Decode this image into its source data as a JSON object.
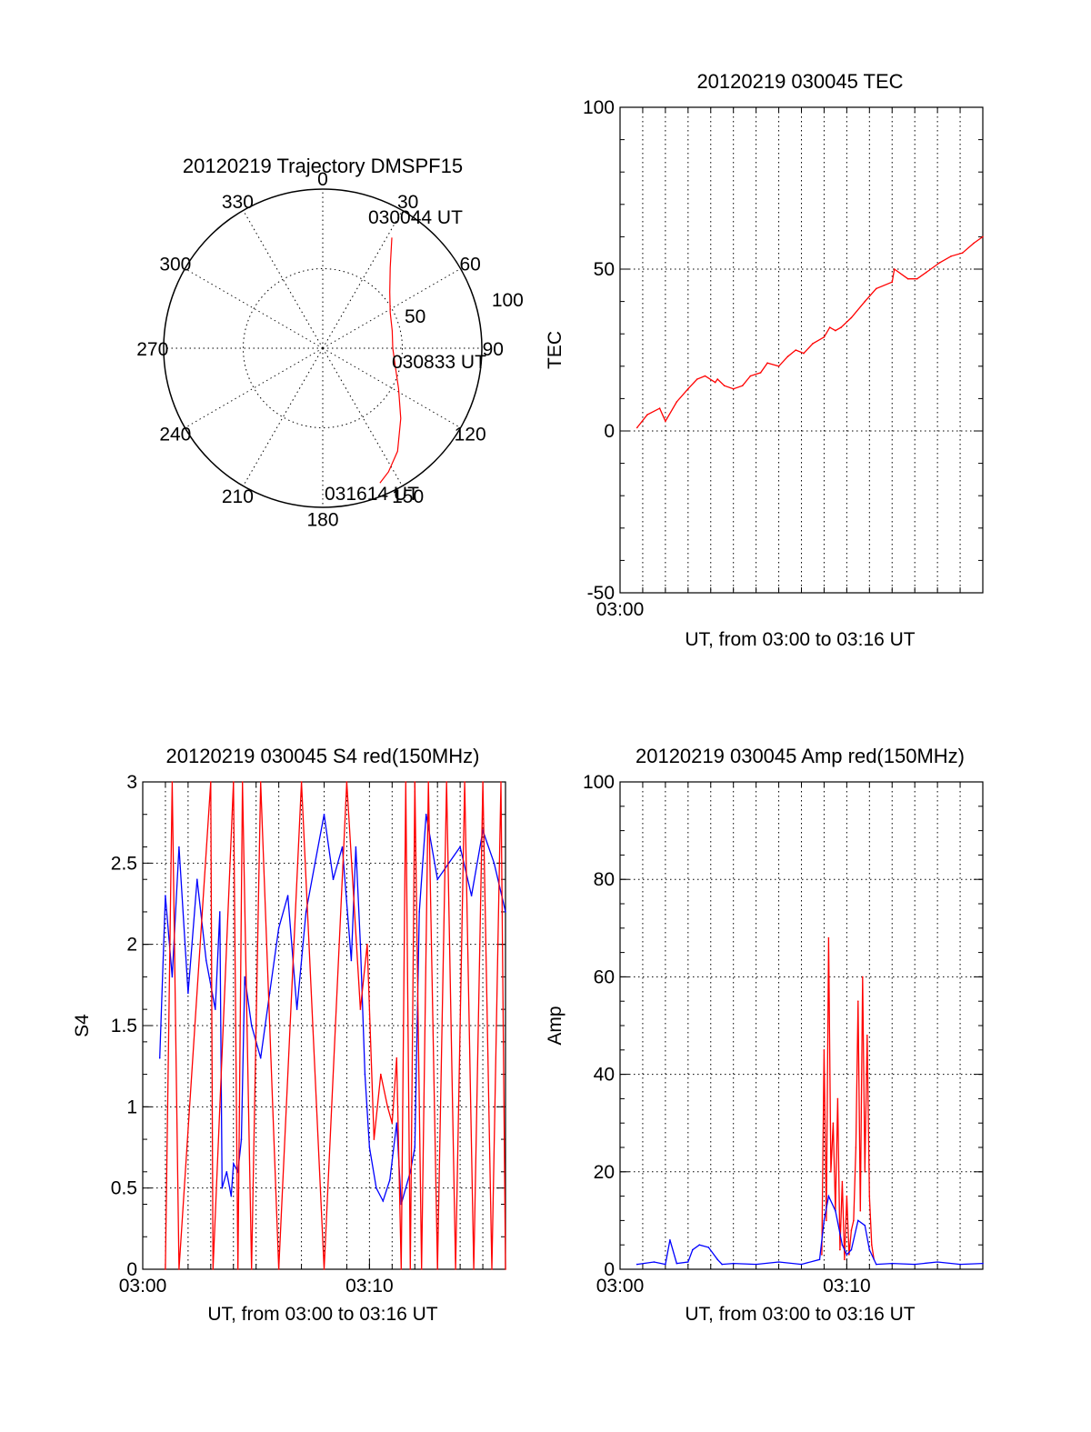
{
  "colors": {
    "red": "#ff0000",
    "blue": "#0000ff",
    "axis": "#000000"
  },
  "chart_data": [
    {
      "type": "polar",
      "title": "20120219 Trajectory DMSPF15",
      "azimuth_labels": [
        "0",
        "30",
        "60",
        "90",
        "120",
        "150",
        "180",
        "210",
        "240",
        "270",
        "300",
        "330"
      ],
      "radius_labels": [
        "50",
        "100"
      ],
      "rlim": [
        0,
        100
      ],
      "annotations": [
        "030044 UT",
        "030833 UT",
        "031614 UT"
      ],
      "grid": true,
      "series": [
        {
          "color": "#ff0000",
          "points": [
            [
              32,
              82
            ],
            [
              40,
              66
            ],
            [
              50,
              55
            ],
            [
              62,
              48
            ],
            [
              76,
              45
            ],
            [
              90,
              44
            ],
            [
              104,
              47
            ],
            [
              118,
              54
            ],
            [
              132,
              66
            ],
            [
              144,
              80
            ],
            [
              152,
              88
            ],
            [
              157,
              92
            ]
          ]
        }
      ]
    },
    {
      "type": "line",
      "title": "20120219 030045 TEC",
      "xlabel": "UT, from 03:00 to 03:16 UT",
      "ylabel": "TEC",
      "xlim": [
        0,
        16
      ],
      "ylim": [
        -50,
        100
      ],
      "yticks": [
        "-50",
        "0",
        "50",
        "100"
      ],
      "xticks": [
        {
          "value": 0,
          "label": "03:00"
        }
      ],
      "grid": true,
      "series": [
        {
          "color": "#ff0000",
          "x": [
            0.75,
            1.2,
            1.75,
            2.0,
            2.5,
            3.0,
            3.4,
            3.75,
            4.2,
            4.3,
            4.6,
            5.0,
            5.4,
            5.75,
            6.2,
            6.5,
            7.0,
            7.4,
            7.75,
            8.1,
            8.5,
            9.0,
            9.25,
            9.5,
            9.75,
            10.2,
            10.8,
            11.3,
            12.0,
            12.1,
            12.7,
            13.1,
            13.5,
            14.1,
            14.6,
            15.1,
            15.6,
            16.0
          ],
          "y": [
            1,
            5,
            7,
            3,
            9,
            13,
            16,
            17,
            15,
            16,
            14,
            13,
            14,
            17,
            18,
            21,
            20,
            23,
            25,
            24,
            27,
            29,
            32,
            31,
            32,
            35,
            40,
            44,
            46,
            50,
            47,
            47,
            49,
            52,
            54,
            55,
            58,
            60
          ]
        }
      ]
    },
    {
      "type": "line",
      "title": "20120219 030045 S4 red(150MHz)",
      "xlabel": "UT, from 03:00 to 03:16 UT",
      "ylabel": "S4",
      "xlim": [
        0,
        16
      ],
      "ylim": [
        0,
        3
      ],
      "yticks": [
        "0",
        "0.5",
        "1",
        "1.5",
        "2",
        "2.5",
        "3"
      ],
      "xticks": [
        {
          "value": 0,
          "label": "03:00"
        },
        {
          "value": 10,
          "label": "03:10"
        }
      ],
      "grid": true,
      "series": [
        {
          "name": "blue",
          "color": "#0000ff",
          "x": [
            0.75,
            1.0,
            1.3,
            1.6,
            2.0,
            2.4,
            2.8,
            3.2,
            3.4,
            3.5,
            3.7,
            3.9,
            4.0,
            4.2,
            4.35,
            4.5,
            4.8,
            5.2,
            5.6,
            6.0,
            6.4,
            6.8,
            7.2,
            7.6,
            8.0,
            8.4,
            8.8,
            9.2,
            9.4,
            9.6,
            9.8,
            10.0,
            10.3,
            10.6,
            10.9,
            11.2,
            11.4,
            11.6,
            11.8,
            12.0,
            12.2,
            12.5,
            13.0,
            13.5,
            14.0,
            14.5,
            15.0,
            15.5,
            16.0
          ],
          "y": [
            1.3,
            2.3,
            1.8,
            2.6,
            1.7,
            2.4,
            1.9,
            1.6,
            2.2,
            0.5,
            0.6,
            0.45,
            0.65,
            0.6,
            0.8,
            1.8,
            1.5,
            1.3,
            1.7,
            2.1,
            2.3,
            1.6,
            2.2,
            2.5,
            2.8,
            2.4,
            2.6,
            1.9,
            2.6,
            2.0,
            1.2,
            0.75,
            0.5,
            0.42,
            0.55,
            0.9,
            0.4,
            0.5,
            0.6,
            0.75,
            2.2,
            2.8,
            2.4,
            2.5,
            2.6,
            2.3,
            2.7,
            2.5,
            2.2
          ]
        },
        {
          "name": "red",
          "color": "#ff0000",
          "x": [
            1.0,
            1.3,
            1.6,
            3.0,
            3.1,
            4.0,
            4.2,
            4.4,
            4.8,
            5.2,
            6.0,
            7.0,
            8.0,
            9.0,
            9.6,
            9.9,
            10.2,
            10.5,
            10.8,
            11.0,
            11.2,
            11.4,
            11.6,
            11.8,
            12.0,
            12.3,
            12.6,
            13.0,
            13.4,
            13.8,
            14.2,
            14.6,
            15.0,
            15.4,
            15.8,
            16.0
          ],
          "y": [
            0,
            3,
            0,
            3,
            0,
            3,
            0,
            3,
            0,
            3,
            0,
            3,
            0,
            3,
            1.6,
            2.0,
            0.8,
            1.2,
            1.0,
            0.9,
            1.3,
            0,
            3,
            0,
            3,
            0,
            3,
            0,
            3,
            0,
            3,
            0,
            3,
            0,
            3,
            0
          ]
        }
      ]
    },
    {
      "type": "line",
      "title": "20120219 030045 Amp red(150MHz)",
      "xlabel": "UT, from 03:00 to 03:16 UT",
      "ylabel": "Amp",
      "xlim": [
        0,
        16
      ],
      "ylim": [
        0,
        100
      ],
      "yticks": [
        "0",
        "20",
        "40",
        "60",
        "80",
        "100"
      ],
      "xticks": [
        {
          "value": 0,
          "label": "03:00"
        },
        {
          "value": 10,
          "label": "03:10"
        }
      ],
      "grid": true,
      "series": [
        {
          "name": "red",
          "color": "#ff0000",
          "x": [
            8.9,
            9.0,
            9.1,
            9.2,
            9.3,
            9.4,
            9.5,
            9.6,
            9.7,
            9.8,
            9.9,
            10.0,
            10.1,
            10.2,
            10.3,
            10.4,
            10.5,
            10.6,
            10.7,
            10.8,
            10.9,
            11.0,
            11.1,
            11.2
          ],
          "y": [
            3,
            45,
            10,
            68,
            20,
            30,
            12,
            35,
            4,
            18,
            2,
            15,
            3,
            8,
            10,
            25,
            55,
            12,
            60,
            20,
            48,
            15,
            5,
            2
          ]
        },
        {
          "name": "blue",
          "color": "#0000ff",
          "x": [
            0.75,
            1.5,
            2.0,
            2.2,
            2.5,
            3.0,
            3.2,
            3.5,
            3.9,
            4.3,
            4.5,
            5.0,
            6.0,
            7.0,
            8.0,
            8.8,
            9.0,
            9.2,
            9.5,
            9.8,
            10.0,
            10.2,
            10.5,
            10.8,
            11.0,
            11.3,
            12.0,
            13.0,
            14.0,
            15.0,
            16.0
          ],
          "y": [
            1,
            1.5,
            1,
            6,
            1.2,
            1.5,
            4,
            5,
            4.5,
            2,
            1,
            1.2,
            1,
            1.5,
            1,
            2,
            10,
            15,
            12,
            5,
            3,
            4,
            10,
            9,
            4,
            1,
            1.2,
            1,
            1.5,
            1,
            1.2
          ]
        }
      ]
    }
  ]
}
